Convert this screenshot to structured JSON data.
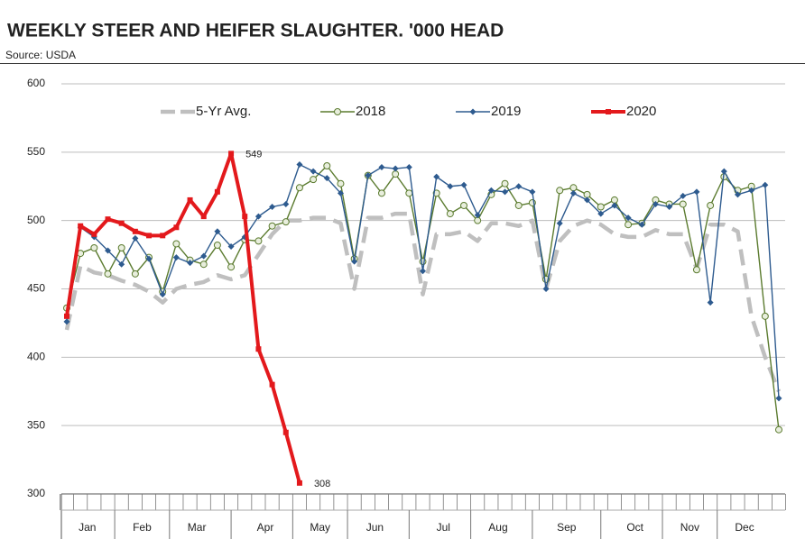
{
  "chart_data": {
    "type": "line",
    "title": "WEEKLY STEER AND HEIFER SLAUGHTER. '000 HEAD",
    "subtitle": "Source: USDA",
    "categories": [
      null,
      "Jan",
      null,
      null,
      null,
      "Feb",
      null,
      null,
      null,
      "Mar",
      null,
      null,
      null,
      null,
      "Apr",
      null,
      null,
      null,
      "May",
      null,
      null,
      null,
      "Jun",
      null,
      null,
      null,
      null,
      "Jul",
      null,
      null,
      null,
      "Aug",
      null,
      null,
      null,
      null,
      "Sep",
      null,
      null,
      null,
      null,
      "Oct",
      null,
      null,
      null,
      "Nov",
      null,
      null,
      null,
      "Dec",
      null,
      null,
      null
    ],
    "ylim": [
      300,
      600
    ],
    "yticks": [
      300,
      350,
      400,
      450,
      500,
      550,
      600
    ],
    "grid": true,
    "legend": "top",
    "series": [
      {
        "name": "5-Yr Avg.",
        "color": "#bfbfbf",
        "style": "dashed",
        "values": [
          420,
          467,
          462,
          460,
          456,
          453,
          448,
          440,
          450,
          453,
          455,
          460,
          457,
          460,
          475,
          490,
          500,
          500,
          502,
          502,
          498,
          450,
          502,
          502,
          505,
          505,
          446,
          490,
          490,
          492,
          485,
          498,
          498,
          496,
          500,
          450,
          485,
          496,
          500,
          497,
          490,
          488,
          488,
          493,
          490,
          490,
          465,
          497,
          497,
          492,
          430,
          400,
          375
        ]
      },
      {
        "name": "2018",
        "color": "#5b7b2f",
        "marker": "circle",
        "values": [
          436,
          476,
          480,
          461,
          480,
          461,
          473,
          448,
          483,
          471,
          468,
          482,
          466,
          486,
          485,
          496,
          499,
          524,
          530,
          540,
          527,
          472,
          533,
          520,
          534,
          520,
          470,
          520,
          505,
          511,
          500,
          519,
          527,
          511,
          513,
          457,
          522,
          524,
          519,
          510,
          515,
          497,
          498,
          515,
          512,
          512,
          464,
          511,
          532,
          522,
          525,
          430,
          347
        ]
      },
      {
        "name": "2019",
        "color": "#2e5b8f",
        "marker": "diamond",
        "values": [
          426,
          495,
          488,
          478,
          468,
          487,
          472,
          446,
          473,
          469,
          474,
          492,
          481,
          488,
          503,
          510,
          512,
          541,
          536,
          531,
          520,
          470,
          533,
          539,
          538,
          539,
          463,
          532,
          525,
          526,
          504,
          522,
          521,
          525,
          521,
          450,
          498,
          520,
          515,
          505,
          511,
          502,
          497,
          512,
          510,
          518,
          521,
          440,
          536,
          519,
          522,
          526,
          370
        ]
      },
      {
        "name": "2020",
        "color": "#e3191c",
        "marker": "square",
        "width": 4,
        "values": [
          430,
          496,
          490,
          501,
          498,
          492,
          489,
          489,
          495,
          515,
          503,
          521,
          549,
          503,
          406,
          380,
          345,
          308,
          null,
          null,
          null,
          null,
          null,
          null,
          null,
          null,
          null,
          null,
          null,
          null,
          null,
          null,
          null,
          null,
          null,
          null,
          null,
          null,
          null,
          null,
          null,
          null,
          null,
          null,
          null,
          null,
          null,
          null,
          null,
          null,
          null,
          null,
          null
        ]
      }
    ],
    "data_labels": [
      {
        "series": 3,
        "index": 12
      },
      {
        "series": 3,
        "index": 17
      }
    ]
  }
}
